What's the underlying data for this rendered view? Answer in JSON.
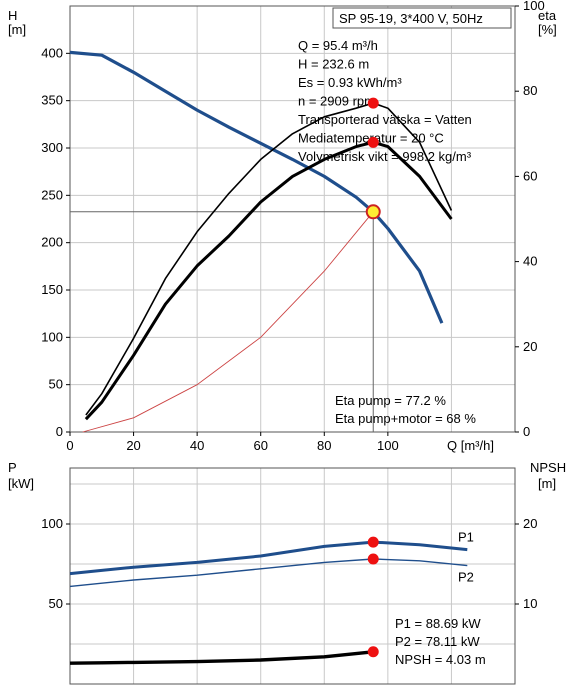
{
  "chart_data": [
    {
      "type": "line",
      "title": "SP 95-19, 3*400 V, 50Hz",
      "xlabel": "Q [m³/h]",
      "ylabel_left": [
        "H",
        "[m]"
      ],
      "ylabel_right": [
        "eta",
        "[%]"
      ],
      "xlim": [
        0,
        140
      ],
      "ylim_left": [
        0,
        450
      ],
      "ylim_right": [
        0,
        100
      ],
      "xticks": [
        "0",
        "20",
        "40",
        "60",
        "80",
        "100"
      ],
      "yticks_left": [
        "0",
        "50",
        "100",
        "150",
        "200",
        "250",
        "300",
        "350",
        "400"
      ],
      "yticks_right": [
        "0",
        "20",
        "40",
        "60",
        "80",
        "100"
      ],
      "grid": true,
      "info_lines": [
        "Q = 95.4 m³/h",
        "H = 232.6 m",
        "Es = 0.93 kWh/m³",
        "n = 2909 rpm",
        "Transporterad vätska = Vatten",
        "Mediatemperatur = 20 °C",
        "Volymetrisk vikt = 998.2 kg/m³"
      ],
      "eta_lines": [
        "Eta pump = 77.2 %",
        "Eta pump+motor = 68 %"
      ],
      "operating_point": {
        "q": 95.4,
        "h": 232.6,
        "eta_pump": 77.2,
        "eta_total": 68
      },
      "series": [
        {
          "axis": "left",
          "color": "#1f4e8c",
          "x": [
            0,
            10,
            20,
            30,
            40,
            50,
            60,
            70,
            80,
            90,
            95.4,
            100,
            110,
            117
          ],
          "values": [
            401,
            398,
            380,
            360,
            340,
            322,
            305,
            288,
            270,
            248,
            232.6,
            215,
            170,
            115
          ]
        },
        {
          "axis": "left",
          "color": "#cc4444",
          "x": [
            4,
            20,
            40,
            60,
            80,
            95.4
          ],
          "values": [
            0,
            15,
            50,
            100,
            170,
            232.6
          ]
        },
        {
          "axis": "right",
          "color": "#000000",
          "x": [
            5,
            10,
            20,
            30,
            40,
            50,
            60,
            70,
            80,
            90,
            95.4,
            100,
            110,
            120
          ],
          "values": [
            4,
            9,
            22,
            36,
            47,
            56,
            64,
            70,
            74,
            76,
            77.2,
            76,
            68,
            52
          ]
        },
        {
          "axis": "right",
          "color": "#000000",
          "x": [
            5,
            10,
            20,
            30,
            40,
            50,
            60,
            70,
            80,
            90,
            95.4,
            100,
            110,
            120
          ],
          "values": [
            3,
            7,
            18,
            30,
            39,
            46,
            54,
            60,
            64,
            67,
            68,
            67,
            60,
            50
          ]
        }
      ]
    },
    {
      "type": "line",
      "xlim": [
        0,
        140
      ],
      "ylim_left": [
        0,
        135
      ],
      "ylim_right": [
        0,
        27
      ],
      "ylabel_left": [
        "P",
        "[kW]"
      ],
      "ylabel_right": [
        "NPSH",
        "[m]"
      ],
      "yticks_left": [
        "50",
        "100"
      ],
      "yticks_right": [
        "10",
        "20"
      ],
      "grid": true,
      "info_lines": [
        "P1 = 88.69 kW",
        "P2 = 78.11 kW",
        "NPSH = 4.03 m"
      ],
      "operating_point": {
        "q": 95.4,
        "p1": 88.69,
        "p2": 78.11,
        "npsh": 4.03
      },
      "series": [
        {
          "name": "P1",
          "axis": "left",
          "color": "#1f4e8c",
          "x": [
            0,
            10,
            20,
            40,
            60,
            80,
            95.4,
            110,
            125
          ],
          "values": [
            69,
            71,
            73,
            76,
            80,
            86,
            88.69,
            87,
            84
          ]
        },
        {
          "name": "P2",
          "axis": "left",
          "color": "#1f4e8c",
          "x": [
            0,
            10,
            20,
            40,
            60,
            80,
            95.4,
            110,
            125
          ],
          "values": [
            61,
            63,
            65,
            68,
            72,
            76,
            78.11,
            77,
            74
          ]
        },
        {
          "axis": "right",
          "color": "#000000",
          "x": [
            0,
            10,
            20,
            40,
            60,
            80,
            90,
            95.4
          ],
          "values": [
            2.6,
            2.65,
            2.7,
            2.8,
            3.0,
            3.4,
            3.8,
            4.03
          ]
        }
      ]
    }
  ]
}
